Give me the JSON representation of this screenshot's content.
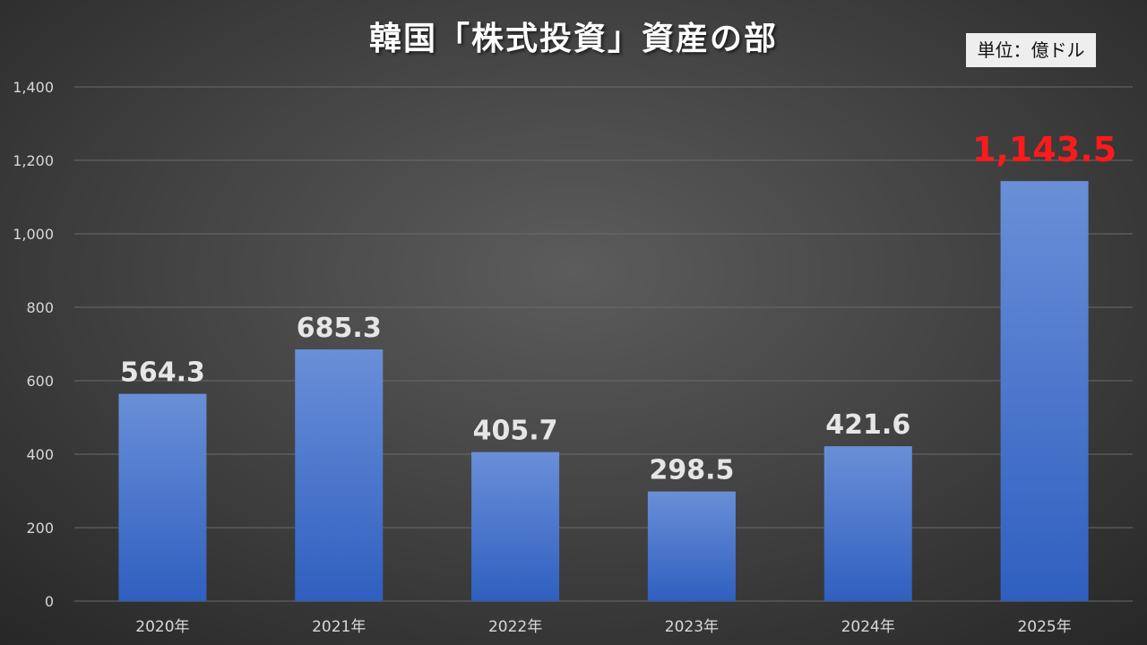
{
  "title": "韓国「株式投資」資産の部",
  "unit_label": "単位：億ドル",
  "chart_data": {
    "type": "bar",
    "title": "韓国「株式投資」資産の部",
    "unit": "単位：億ドル",
    "categories": [
      "2020年",
      "2021年",
      "2022年",
      "2023年",
      "2024年",
      "2025年"
    ],
    "values": [
      564.3,
      685.3,
      405.7,
      298.5,
      421.6,
      1143.5
    ],
    "value_labels": [
      "564.3",
      "685.3",
      "405.7",
      "298.5",
      "421.6",
      "1,143.5"
    ],
    "highlight_index": 5,
    "ylim": [
      0,
      1400
    ],
    "yticks": [
      0,
      200,
      400,
      600,
      800,
      1000,
      1200,
      1400
    ],
    "ytick_labels": [
      "0",
      "200",
      "400",
      "600",
      "800",
      "1,000",
      "1,200",
      "1,400"
    ],
    "xlabel": "",
    "ylabel": "",
    "grid": true,
    "colors": {
      "bar_top": "#6a8fd8",
      "bar_bottom": "#2f5fbf",
      "highlight_label": "#ff1a1a",
      "value_label": "#e6e6e6",
      "grid": "#6a6a6a"
    }
  }
}
